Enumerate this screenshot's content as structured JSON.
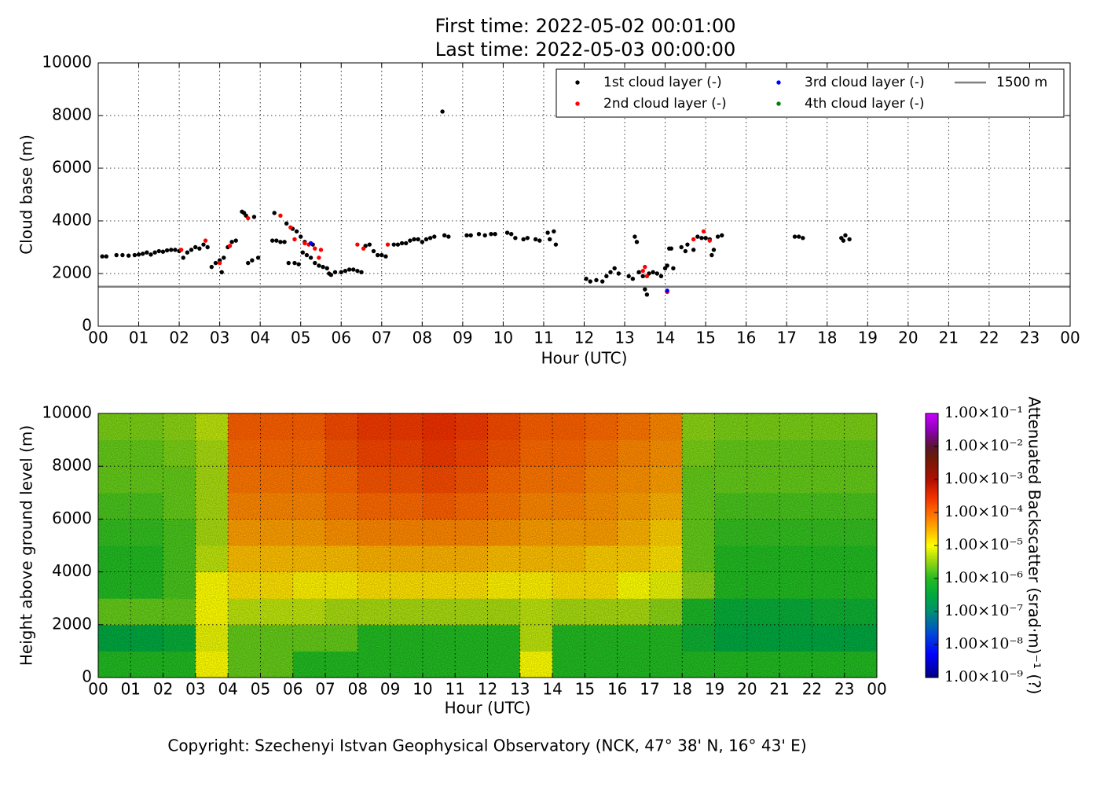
{
  "chart_data": [
    {
      "type": "scatter",
      "title": "First time: 2022-05-02 00:01:00",
      "subtitle": "Last time: 2022-05-03 00:00:00",
      "x_label": "Hour (UTC)",
      "y_label": "Cloud base (m)",
      "xlim": [
        0,
        24
      ],
      "ylim": [
        0,
        10000
      ],
      "xticks": [
        {
          "value": 0,
          "label": "00"
        },
        {
          "value": 1,
          "label": "01"
        },
        {
          "value": 2,
          "label": "02"
        },
        {
          "value": 3,
          "label": "03"
        },
        {
          "value": 4,
          "label": "04"
        },
        {
          "value": 5,
          "label": "05"
        },
        {
          "value": 6,
          "label": "06"
        },
        {
          "value": 7,
          "label": "07"
        },
        {
          "value": 8,
          "label": "08"
        },
        {
          "value": 9,
          "label": "09"
        },
        {
          "value": 10,
          "label": "10"
        },
        {
          "value": 11,
          "label": "11"
        },
        {
          "value": 12,
          "label": "12"
        },
        {
          "value": 13,
          "label": "13"
        },
        {
          "value": 14,
          "label": "14"
        },
        {
          "value": 15,
          "label": "15"
        },
        {
          "value": 16,
          "label": "16"
        },
        {
          "value": 17,
          "label": "17"
        },
        {
          "value": 18,
          "label": "18"
        },
        {
          "value": 19,
          "label": "19"
        },
        {
          "value": 20,
          "label": "20"
        },
        {
          "value": 21,
          "label": "21"
        },
        {
          "value": 22,
          "label": "22"
        },
        {
          "value": 23,
          "label": "23"
        },
        {
          "value": 24,
          "label": "00"
        }
      ],
      "yticks": [
        0,
        2000,
        4000,
        6000,
        8000,
        10000
      ],
      "grid": true,
      "legend": "upper right",
      "series": [
        {
          "name": "1st cloud layer (-)",
          "color": "#000000",
          "x": [
            0.1,
            0.2,
            0.45,
            0.6,
            0.75,
            0.9,
            1.0,
            1.1,
            1.2,
            1.3,
            1.4,
            1.5,
            1.6,
            1.7,
            1.8,
            1.9,
            2.0,
            2.1,
            2.2,
            2.3,
            2.4,
            2.5,
            2.6,
            2.7,
            2.8,
            2.9,
            3.0,
            3.05,
            3.1,
            3.2,
            3.3,
            3.4,
            3.55,
            3.6,
            3.65,
            3.7,
            3.8,
            3.85,
            3.95,
            4.3,
            4.35,
            4.4,
            4.5,
            4.6,
            4.65,
            4.7,
            4.8,
            4.85,
            4.9,
            4.95,
            5.0,
            5.05,
            5.1,
            5.15,
            5.25,
            5.3,
            5.35,
            5.45,
            5.55,
            5.65,
            5.7,
            5.75,
            5.85,
            6.0,
            6.1,
            6.2,
            6.3,
            6.4,
            6.5,
            6.6,
            6.7,
            6.8,
            6.9,
            7.0,
            7.1,
            7.3,
            7.4,
            7.5,
            7.6,
            7.7,
            7.8,
            7.9,
            8.0,
            8.1,
            8.2,
            8.3,
            8.5,
            8.55,
            8.65,
            9.1,
            9.2,
            9.4,
            9.55,
            9.7,
            9.8,
            10.1,
            10.2,
            10.3,
            10.5,
            10.6,
            10.8,
            10.9,
            11.1,
            11.15,
            11.25,
            11.3,
            12.05,
            12.15,
            12.3,
            12.45,
            12.55,
            12.65,
            12.75,
            12.85,
            13.1,
            13.2,
            13.25,
            13.3,
            13.35,
            13.45,
            13.5,
            13.55,
            13.6,
            13.7,
            13.8,
            13.9,
            14.0,
            14.05,
            14.1,
            14.15,
            14.2,
            14.4,
            14.5,
            14.55,
            14.7,
            14.8,
            14.9,
            15.0,
            15.1,
            15.15,
            15.2,
            15.3,
            15.4,
            17.2,
            17.3,
            17.4,
            18.35,
            18.4,
            18.45,
            18.55
          ],
          "values": [
            2650,
            2650,
            2700,
            2700,
            2680,
            2700,
            2720,
            2750,
            2800,
            2720,
            2800,
            2850,
            2830,
            2880,
            2900,
            2900,
            2850,
            2600,
            2800,
            2900,
            3000,
            2950,
            3100,
            3000,
            2250,
            2400,
            2500,
            2050,
            2600,
            3000,
            3200,
            3250,
            4350,
            4300,
            4200,
            2400,
            2500,
            4150,
            2600,
            3250,
            4300,
            3250,
            3200,
            3200,
            3900,
            2400,
            3700,
            2400,
            3600,
            2350,
            3400,
            2800,
            3200,
            2700,
            2600,
            3100,
            2400,
            2300,
            2250,
            2200,
            2000,
            1950,
            2050,
            2050,
            2100,
            2150,
            2150,
            2100,
            2050,
            3050,
            3100,
            2850,
            2700,
            2700,
            2650,
            3100,
            3100,
            3150,
            3150,
            3250,
            3300,
            3300,
            3200,
            3300,
            3350,
            3400,
            8150,
            3450,
            3400,
            3450,
            3450,
            3500,
            3450,
            3500,
            3500,
            3550,
            3500,
            3350,
            3300,
            3350,
            3300,
            3250,
            3550,
            3300,
            3600,
            3100,
            1800,
            1700,
            1750,
            1700,
            1900,
            2050,
            2200,
            2000,
            1900,
            1800,
            3400,
            3200,
            2050,
            1900,
            1400,
            1200,
            2000,
            2050,
            2000,
            1900,
            2200,
            2300,
            2950,
            2950,
            2200,
            3000,
            2850,
            3100,
            2900,
            3400,
            3350,
            3350,
            3300,
            2700,
            2900,
            3400,
            3450,
            3400,
            3400,
            3350,
            3350,
            3250,
            3450,
            3300
          ]
        },
        {
          "name": "2nd cloud layer (-)",
          "color": "#ff0000",
          "x": [
            2.05,
            2.65,
            3.0,
            3.25,
            3.7,
            4.5,
            4.75,
            4.85,
            5.1,
            5.2,
            5.35,
            5.45,
            5.5,
            6.4,
            6.55,
            7.15,
            13.45,
            13.5,
            13.55,
            14.05,
            14.7,
            14.95,
            15.1
          ],
          "values": [
            2900,
            3250,
            2400,
            3050,
            4100,
            4200,
            3750,
            3300,
            3150,
            3100,
            2950,
            2600,
            2900,
            3100,
            2950,
            3100,
            2100,
            2250,
            1900,
            1300,
            3300,
            3600,
            3250
          ]
        },
        {
          "name": "3rd cloud layer (-)",
          "color": "#0000ff",
          "x": [
            5.25,
            14.05
          ],
          "values": [
            3150,
            1350
          ]
        },
        {
          "name": "4th cloud layer (-)",
          "color": "#008000",
          "x": [],
          "values": []
        }
      ],
      "reference_lines": [
        {
          "name": "1500 m",
          "value": 1500,
          "color": "#808080"
        }
      ]
    },
    {
      "type": "heatmap",
      "x_label": "Hour (UTC)",
      "y_label": "Height above ground level (m)",
      "colorbar_label": "Attenuated Backscatter (srad·m)⁻¹ (?)",
      "xlim": [
        0,
        24
      ],
      "ylim": [
        0,
        10000
      ],
      "xticks": [
        {
          "value": 0,
          "label": "00"
        },
        {
          "value": 1,
          "label": "01"
        },
        {
          "value": 2,
          "label": "02"
        },
        {
          "value": 3,
          "label": "03"
        },
        {
          "value": 4,
          "label": "04"
        },
        {
          "value": 5,
          "label": "05"
        },
        {
          "value": 6,
          "label": "06"
        },
        {
          "value": 7,
          "label": "07"
        },
        {
          "value": 8,
          "label": "08"
        },
        {
          "value": 9,
          "label": "09"
        },
        {
          "value": 10,
          "label": "10"
        },
        {
          "value": 11,
          "label": "11"
        },
        {
          "value": 12,
          "label": "12"
        },
        {
          "value": 13,
          "label": "13"
        },
        {
          "value": 14,
          "label": "14"
        },
        {
          "value": 15,
          "label": "15"
        },
        {
          "value": 16,
          "label": "16"
        },
        {
          "value": 17,
          "label": "17"
        },
        {
          "value": 18,
          "label": "18"
        },
        {
          "value": 19,
          "label": "19"
        },
        {
          "value": 20,
          "label": "20"
        },
        {
          "value": 21,
          "label": "21"
        },
        {
          "value": 22,
          "label": "22"
        },
        {
          "value": 23,
          "label": "23"
        },
        {
          "value": 24,
          "label": "00"
        }
      ],
      "yticks": [
        0,
        2000,
        4000,
        6000,
        8000,
        10000
      ],
      "grid": true,
      "xbins": [
        0,
        1,
        2,
        3,
        4,
        5,
        6,
        7,
        8,
        9,
        10,
        11,
        12,
        13,
        14,
        15,
        16,
        17,
        18,
        19,
        20,
        21,
        22,
        23,
        24
      ],
      "ybins": [
        0,
        1000,
        2000,
        3000,
        4000,
        5000,
        6000,
        7000,
        8000,
        9000,
        10000
      ],
      "z": [
        [
          1e-06,
          1e-06,
          1e-06,
          1e-05,
          2e-06,
          2e-06,
          1e-06,
          1e-06,
          1e-06,
          1e-06,
          1e-06,
          1e-06,
          1e-06,
          1e-05,
          1e-06,
          1e-06,
          1e-06,
          1e-06,
          1e-06,
          1e-06,
          1e-06,
          1e-06,
          1e-06,
          1e-06
        ],
        [
          3e-07,
          3e-07,
          4e-07,
          8e-06,
          2e-06,
          2e-06,
          2e-06,
          2e-06,
          1e-06,
          1e-06,
          1e-06,
          1e-06,
          1e-06,
          5e-06,
          1e-06,
          1e-06,
          1e-06,
          1e-06,
          5e-07,
          3e-07,
          3e-07,
          3e-07,
          3e-07,
          3e-07
        ],
        [
          2e-06,
          2e-06,
          2e-06,
          1e-05,
          5e-06,
          5e-06,
          5e-06,
          4e-06,
          4e-06,
          4e-06,
          4e-06,
          4e-06,
          4e-06,
          5e-06,
          4e-06,
          4e-06,
          4e-06,
          3e-06,
          8e-07,
          4e-07,
          4e-07,
          4e-07,
          5e-07,
          5e-07
        ],
        [
          1e-06,
          1e-06,
          1.5e-06,
          1e-05,
          1.5e-05,
          1.5e-05,
          1.2e-05,
          1.2e-05,
          1.5e-05,
          1.5e-05,
          1.5e-05,
          1.5e-05,
          1.2e-05,
          1.2e-05,
          1.5e-05,
          1.5e-05,
          1e-05,
          8e-06,
          3e-06,
          1e-06,
          1e-06,
          1e-06,
          1e-06,
          1e-06
        ],
        [
          1e-06,
          1e-06,
          1.5e-06,
          5e-06,
          2.5e-05,
          2.5e-05,
          2.5e-05,
          2.5e-05,
          3e-05,
          3e-05,
          3e-05,
          3e-05,
          2.5e-05,
          2.5e-05,
          2.5e-05,
          2e-05,
          2e-05,
          1.5e-05,
          2e-06,
          1e-06,
          1e-06,
          1e-06,
          1e-06,
          1e-06
        ],
        [
          1.2e-06,
          1.2e-06,
          1.5e-06,
          4e-06,
          4e-05,
          4e-05,
          4e-05,
          5e-05,
          6e-05,
          6e-05,
          6e-05,
          6e-05,
          5e-05,
          4e-05,
          4e-05,
          4e-05,
          3e-05,
          2e-05,
          2e-06,
          1.2e-06,
          1.2e-06,
          1.2e-06,
          1.2e-06,
          1.2e-06
        ],
        [
          1.5e-06,
          1.5e-06,
          2e-06,
          4e-06,
          6e-05,
          6e-05,
          6e-05,
          8e-05,
          0.0001,
          0.0001,
          0.00012,
          0.0001,
          8e-05,
          6e-05,
          6e-05,
          5e-05,
          4e-05,
          3e-05,
          2e-06,
          1.5e-06,
          1.5e-06,
          1.5e-06,
          1.5e-06,
          1.5e-06
        ],
        [
          2e-06,
          2e-06,
          2e-06,
          4e-06,
          8e-05,
          8e-05,
          8e-05,
          0.0001,
          0.00015,
          0.00015,
          0.00018,
          0.00015,
          0.0001,
          8e-05,
          8e-05,
          6e-05,
          5e-05,
          4e-05,
          2e-06,
          2e-06,
          2e-06,
          2e-06,
          2e-06,
          2e-06
        ],
        [
          2e-06,
          2e-06,
          2.5e-06,
          4e-06,
          0.0001,
          0.0001,
          0.0001,
          0.00015,
          0.0002,
          0.0002,
          0.00025,
          0.0002,
          0.00015,
          0.0001,
          0.0001,
          8e-05,
          6e-05,
          5e-05,
          2.5e-06,
          2e-06,
          2e-06,
          2e-06,
          2e-06,
          2e-06
        ],
        [
          2.5e-06,
          2.5e-06,
          3e-06,
          5e-06,
          0.00012,
          0.00012,
          0.00012,
          0.00018,
          0.00025,
          0.00025,
          0.0003,
          0.00025,
          0.00018,
          0.00012,
          0.00012,
          0.0001,
          8e-05,
          6e-05,
          3e-06,
          2.5e-06,
          2.5e-06,
          2.5e-06,
          2.5e-06,
          2.5e-06
        ]
      ],
      "zlim": [
        1e-09,
        0.1
      ],
      "zscale": "log",
      "zticks": [
        {
          "value": 1e-09,
          "label": "1.00×10⁻⁹"
        },
        {
          "value": 1e-08,
          "label": "1.00×10⁻⁸"
        },
        {
          "value": 1e-07,
          "label": "1.00×10⁻⁷"
        },
        {
          "value": 1e-06,
          "label": "1.00×10⁻⁶"
        },
        {
          "value": 1e-05,
          "label": "1.00×10⁻⁵"
        },
        {
          "value": 0.0001,
          "label": "1.00×10⁻⁴"
        },
        {
          "value": 0.001,
          "label": "1.00×10⁻³"
        },
        {
          "value": 0.01,
          "label": "1.00×10⁻²"
        },
        {
          "value": 0.1,
          "label": "1.00×10⁻¹"
        }
      ],
      "colorscale": [
        [
          1e-09,
          "#00007f"
        ],
        [
          5e-09,
          "#0000ff"
        ],
        [
          2.5e-08,
          "#0050d0"
        ],
        [
          1e-07,
          "#009070"
        ],
        [
          3e-07,
          "#00a840"
        ],
        [
          1e-06,
          "#22bb22"
        ],
        [
          4e-06,
          "#a8dc10"
        ],
        [
          1e-05,
          "#ffff00"
        ],
        [
          4e-05,
          "#ffa000"
        ],
        [
          0.0001,
          "#ff6a00"
        ],
        [
          0.0003,
          "#f03000"
        ],
        [
          0.001,
          "#b01000"
        ],
        [
          0.005,
          "#6a1a08"
        ],
        [
          0.01,
          "#5a1430"
        ],
        [
          0.03,
          "#8a00b0"
        ],
        [
          0.1,
          "#c800ff"
        ]
      ]
    }
  ],
  "footer": "Copyright: Szechenyi Istvan Geophysical Observatory (NCK, 47° 38' N, 16° 43' E)"
}
